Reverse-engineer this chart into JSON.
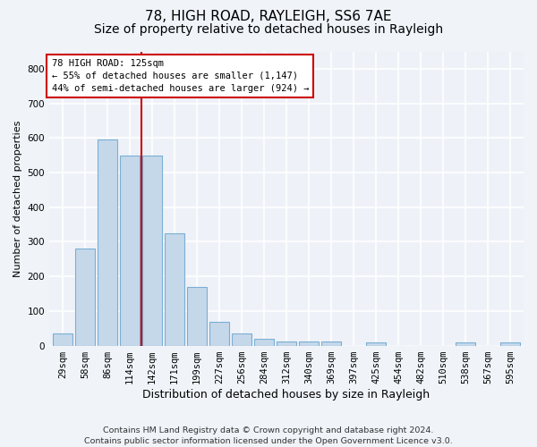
{
  "title1": "78, HIGH ROAD, RAYLEIGH, SS6 7AE",
  "title2": "Size of property relative to detached houses in Rayleigh",
  "xlabel": "Distribution of detached houses by size in Rayleigh",
  "ylabel": "Number of detached properties",
  "categories": [
    "29sqm",
    "58sqm",
    "86sqm",
    "114sqm",
    "142sqm",
    "171sqm",
    "199sqm",
    "227sqm",
    "256sqm",
    "284sqm",
    "312sqm",
    "340sqm",
    "369sqm",
    "397sqm",
    "425sqm",
    "454sqm",
    "482sqm",
    "510sqm",
    "538sqm",
    "567sqm",
    "595sqm"
  ],
  "values": [
    35,
    280,
    595,
    550,
    550,
    325,
    170,
    68,
    35,
    20,
    12,
    12,
    12,
    0,
    8,
    0,
    0,
    0,
    8,
    0,
    8
  ],
  "bar_color": "#c5d8ea",
  "bar_edge_color": "#7aafd4",
  "vline_color": "#cc0000",
  "annotation_line1": "78 HIGH ROAD: 125sqm",
  "annotation_line2": "← 55% of detached houses are smaller (1,147)",
  "annotation_line3": "44% of semi-detached houses are larger (924) →",
  "annotation_box_facecolor": "#ffffff",
  "annotation_box_edgecolor": "#cc0000",
  "footer": "Contains HM Land Registry data © Crown copyright and database right 2024.\nContains public sector information licensed under the Open Government Licence v3.0.",
  "ylim_max": 850,
  "fig_facecolor": "#f0f4f9",
  "axes_facecolor": "#eef2f8",
  "grid_color": "#ffffff",
  "title1_fontsize": 11,
  "title2_fontsize": 10,
  "xlabel_fontsize": 9,
  "ylabel_fontsize": 8,
  "tick_fontsize": 7.5,
  "annot_fontsize": 7.5,
  "footer_fontsize": 6.8
}
